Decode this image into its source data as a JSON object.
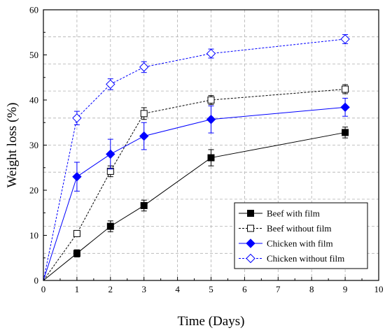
{
  "chart_data": {
    "type": "line",
    "xlabel": "Time (Days)",
    "ylabel": "Weight loss (%)",
    "xlim": [
      0,
      10
    ],
    "ylim": [
      0,
      60
    ],
    "xticks": [
      "0",
      "1",
      "2",
      "3",
      "4",
      "5",
      "6",
      "7",
      "8",
      "9",
      "10"
    ],
    "yticks": [
      "0",
      "10",
      "20",
      "30",
      "40",
      "50",
      "60"
    ],
    "grid": "dashed",
    "legend_position": "bottom-right",
    "series": [
      {
        "name": "Beef with film",
        "color": "#000000",
        "line": "solid",
        "marker": "square-filled",
        "x": [
          0,
          1,
          2,
          3,
          5,
          9
        ],
        "y": [
          0,
          6,
          12,
          16.6,
          27.2,
          32.8
        ],
        "err": [
          0,
          0.8,
          1.2,
          1.2,
          1.8,
          1.2
        ]
      },
      {
        "name": "Beef without film",
        "color": "#000000",
        "line": "dashed",
        "marker": "square-open",
        "x": [
          0,
          1,
          2,
          3,
          5,
          9
        ],
        "y": [
          0,
          10.4,
          24.2,
          37,
          40,
          42.4
        ],
        "err": [
          0,
          0.6,
          1.2,
          1.3,
          1,
          1
        ]
      },
      {
        "name": "Chicken with film",
        "color": "#0000ff",
        "line": "solid",
        "marker": "diamond-filled",
        "x": [
          0,
          1,
          2,
          3,
          5,
          9
        ],
        "y": [
          0,
          23,
          28,
          32,
          35.7,
          38.4
        ],
        "err": [
          0,
          3.2,
          3.3,
          3,
          3,
          2
        ]
      },
      {
        "name": "Chicken without film",
        "color": "#0000ff",
        "line": "dashed",
        "marker": "diamond-open",
        "x": [
          0,
          1,
          2,
          3,
          5,
          9
        ],
        "y": [
          0,
          36,
          43.5,
          47.3,
          50.3,
          53.5
        ],
        "err": [
          0,
          1.5,
          1.2,
          1.2,
          1,
          1
        ]
      }
    ]
  }
}
